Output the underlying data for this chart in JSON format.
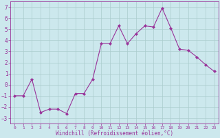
{
  "x": [
    0,
    1,
    2,
    3,
    4,
    5,
    6,
    7,
    8,
    9,
    10,
    11,
    12,
    13,
    14,
    15,
    16,
    17,
    18,
    19,
    20,
    21,
    22,
    23
  ],
  "y": [
    -1,
    -1,
    0.5,
    -2.5,
    -2.2,
    -2.2,
    -2.6,
    -0.8,
    -0.8,
    0.5,
    3.7,
    3.7,
    5.3,
    3.7,
    4.6,
    5.3,
    5.2,
    6.9,
    5.1,
    3.2,
    3.1,
    2.5,
    1.8,
    1.2
  ],
  "line_color": "#993399",
  "marker": "D",
  "marker_size": 2,
  "bg_color": "#cce8ed",
  "grid_color": "#aacccc",
  "xlabel": "Windchill (Refroidissement éolien,°C)",
  "ylim": [
    -3.5,
    7.5
  ],
  "xlim": [
    -0.5,
    23.5
  ],
  "yticks": [
    -3,
    -2,
    -1,
    0,
    1,
    2,
    3,
    4,
    5,
    6,
    7
  ],
  "xticks": [
    0,
    1,
    2,
    3,
    4,
    5,
    6,
    7,
    8,
    9,
    10,
    11,
    12,
    13,
    14,
    15,
    16,
    17,
    18,
    19,
    20,
    21,
    22,
    23
  ],
  "tick_color": "#993399",
  "label_color": "#993399",
  "tick_fontsize_x": 4.5,
  "tick_fontsize_y": 5.5,
  "xlabel_fontsize": 5.5
}
